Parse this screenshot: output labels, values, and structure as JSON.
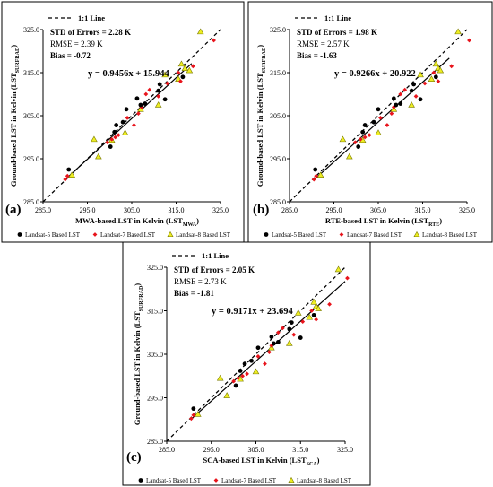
{
  "chart_data": [
    {
      "type": "scatter",
      "panel_label": "(a)",
      "xlabel": "MWA-based LST in Kelvin (LST",
      "xlabel_sub": "MWA",
      "ylabel": "Ground-based LST in Kelvin (LST",
      "ylabel_sub": "SURFRAD",
      "label_close": ")",
      "xlim": [
        285,
        325
      ],
      "ylim": [
        285,
        325
      ],
      "ticks": [
        "285.0",
        "295.0",
        "305.0",
        "315.0",
        "325.0"
      ],
      "identity_label": "1:1 Line",
      "stats": [
        "STD of Errors = 2.28 K",
        "RMSE = 2.39 K",
        "Bias = -0.72"
      ],
      "equation": "y = 0.9456x + 15.944",
      "fit": {
        "slope": 0.9456,
        "intercept": 15.944,
        "x_range": [
          290.5,
          318.5
        ]
      },
      "legend": [
        "Landsat-5 Based LST",
        "Landsat-7 Based LST",
        "Landsat-8 Based LST"
      ],
      "series": [
        {
          "name": "Landsat-5 Based LST",
          "x": [
            290.8,
            300.2,
            301.1,
            301.5,
            303.0,
            303.8,
            306.2,
            307.0,
            308.0,
            311.0,
            311.3,
            312.5,
            316.5
          ],
          "y": [
            292.5,
            297.8,
            301.2,
            302.8,
            303.5,
            306.5,
            309.0,
            307.5,
            307.8,
            310.8,
            312.3,
            308.8,
            314.0
          ]
        },
        {
          "name": "Landsat-7 Based LST",
          "x": [
            290.0,
            290.5,
            299.5,
            300.5,
            301.3,
            302.0,
            304.0,
            305.5,
            306.5,
            307.2,
            308.2,
            309.0,
            311.0,
            313.0,
            315.5,
            316.0,
            318.8,
            323.5
          ],
          "y": [
            290.2,
            291.0,
            298.8,
            299.5,
            300.0,
            300.5,
            304.5,
            302.8,
            305.5,
            307.0,
            310.0,
            311.0,
            309.5,
            312.5,
            315.0,
            313.0,
            316.5,
            322.5
          ]
        },
        {
          "name": "Landsat-8 Based LST",
          "x": [
            291.5,
            296.5,
            297.5,
            300.5,
            303.5,
            307.0,
            311.0,
            312.5,
            315.5,
            316.2,
            317.0,
            318.0,
            320.5
          ],
          "y": [
            291.2,
            299.5,
            295.5,
            299.3,
            301.0,
            306.5,
            307.5,
            314.5,
            313.5,
            317.0,
            316.0,
            315.5,
            324.5
          ]
        }
      ]
    },
    {
      "type": "scatter",
      "panel_label": "(b)",
      "xlabel": "RTE-based LST in Kelvin (LST",
      "xlabel_sub": "RTE",
      "ylabel": "Ground-based LST in Kelvin (LST",
      "ylabel_sub": "SURFRAD",
      "label_close": ")",
      "xlim": [
        285,
        325
      ],
      "ylim": [
        285,
        325
      ],
      "ticks": [
        "285.0",
        "295.0",
        "305.0",
        "315.0",
        "325.0"
      ],
      "identity_label": "1:1 Line",
      "stats": [
        "STD of Errors = 1.98 K",
        "RMSE = 2.57 K",
        "Bias = -1.63"
      ],
      "equation": "y = 0.9266x + 20.922",
      "fit": {
        "slope": 0.9266,
        "intercept": 20.922,
        "x_range": [
          290.5,
          321.0
        ]
      },
      "legend": [
        "Landsat-5 Based LST",
        "Landsat-7 Based LST",
        "Landsat-8 Based LST"
      ],
      "series": [
        {
          "name": "Landsat-5 Based LST",
          "x": [
            290.8,
            300.5,
            301.5,
            302.0,
            304.0,
            305.0,
            308.5,
            309.0,
            310.0,
            312.5,
            313.0,
            314.5,
            318.0
          ],
          "y": [
            292.5,
            297.8,
            301.2,
            302.8,
            303.5,
            306.5,
            309.0,
            307.5,
            307.8,
            310.8,
            312.3,
            308.8,
            314.0
          ]
        },
        {
          "name": "Landsat-7 Based LST",
          "x": [
            290.5,
            291.0,
            299.8,
            301.0,
            302.0,
            303.0,
            305.5,
            307.0,
            308.0,
            308.5,
            310.0,
            311.0,
            313.5,
            315.5,
            317.5,
            318.5,
            321.5,
            325.5
          ],
          "y": [
            290.2,
            291.0,
            298.8,
            299.5,
            300.0,
            300.5,
            304.5,
            302.8,
            305.5,
            307.0,
            310.0,
            311.0,
            309.5,
            312.5,
            315.0,
            313.0,
            316.5,
            322.5
          ]
        },
        {
          "name": "Landsat-8 Based LST",
          "x": [
            292.0,
            297.0,
            298.5,
            301.5,
            305.0,
            308.5,
            312.5,
            314.5,
            317.0,
            318.0,
            318.5,
            319.0,
            323.0
          ],
          "y": [
            291.2,
            299.5,
            295.5,
            299.3,
            301.0,
            306.5,
            307.5,
            314.5,
            313.5,
            317.0,
            316.0,
            315.5,
            324.5
          ]
        }
      ]
    },
    {
      "type": "scatter",
      "panel_label": "(c)",
      "xlabel": "SCA-based LST in Kelvin (LST",
      "xlabel_sub": "SCA",
      "ylabel": "Ground-based LST in Kelvin (LST",
      "ylabel_sub": "SURFRAD",
      "label_close": ")",
      "xlim": [
        285,
        325
      ],
      "ylim": [
        285,
        325
      ],
      "ticks": [
        "285.0",
        "295.0",
        "305.0",
        "315.0",
        "325.0"
      ],
      "identity_label": "1:1 Line",
      "stats": [
        "STD of Errors = 2.05 K",
        "RMSE = 2.73 K",
        "Bias = -1.81"
      ],
      "equation": "y = 0.9171x + 23.694",
      "fit": {
        "slope": 0.9171,
        "intercept": 23.694,
        "x_range": [
          290.5,
          325.0
        ]
      },
      "legend": [
        "Landsat-5 Based LST",
        "Landsat-7 Based LST",
        "Landsat-8 Based LST"
      ],
      "series": [
        {
          "name": "Landsat-5 Based LST",
          "x": [
            291.0,
            300.5,
            301.5,
            302.5,
            304.0,
            305.5,
            308.5,
            309.0,
            310.0,
            312.5,
            313.0,
            315.0,
            318.0
          ],
          "y": [
            292.5,
            297.8,
            301.2,
            302.8,
            303.5,
            306.5,
            309.0,
            307.5,
            307.8,
            310.8,
            312.3,
            308.8,
            314.0
          ]
        },
        {
          "name": "Landsat-7 Based LST",
          "x": [
            290.5,
            291.0,
            300.0,
            301.0,
            302.0,
            303.0,
            305.5,
            307.0,
            308.0,
            308.5,
            310.0,
            311.0,
            313.5,
            315.5,
            317.5,
            318.5,
            321.5,
            325.5
          ],
          "y": [
            290.2,
            291.0,
            298.8,
            299.5,
            300.0,
            300.5,
            304.5,
            302.8,
            305.5,
            307.0,
            310.0,
            311.0,
            309.5,
            312.5,
            315.0,
            313.0,
            316.5,
            322.5
          ]
        },
        {
          "name": "Landsat-8 Based LST",
          "x": [
            292.0,
            297.0,
            298.5,
            301.5,
            305.0,
            308.5,
            312.5,
            314.5,
            317.0,
            318.0,
            318.5,
            319.0,
            323.5
          ],
          "y": [
            291.2,
            299.5,
            295.5,
            299.3,
            301.0,
            306.5,
            307.5,
            314.5,
            313.5,
            317.0,
            316.0,
            315.5,
            324.5
          ]
        }
      ]
    }
  ],
  "colors": {
    "landsat5": "#000000",
    "landsat7": "#e8141c",
    "landsat8_fill": "#eeee22",
    "landsat8_stroke": "#7a7a00"
  }
}
